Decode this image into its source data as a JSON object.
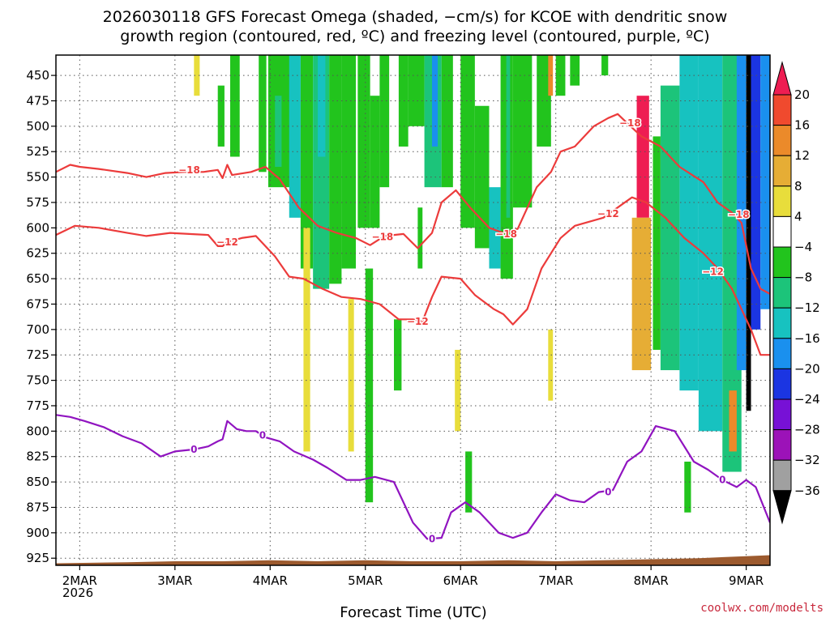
{
  "title_line1": "2026030118 GFS Forecast Omega (shaded, −cm/s) for KCOE with dendritic snow",
  "title_line2": "growth region (contoured, red, ºC) and freezing level (contoured, purple, ºC)",
  "credit": "coolwx.com/modelts",
  "chart_data": {
    "type": "heatmap",
    "xlabel": "Forecast Time (UTC)",
    "ylabel": "",
    "x_ticks": [
      "2MAR",
      "3MAR",
      "4MAR",
      "5MAR",
      "6MAR",
      "7MAR",
      "8MAR",
      "9MAR"
    ],
    "x_tick_year": "2026",
    "y_ticks": [
      450,
      475,
      500,
      525,
      550,
      575,
      600,
      625,
      650,
      675,
      700,
      725,
      750,
      775,
      800,
      825,
      850,
      875,
      900,
      925
    ],
    "x_range_days": [
      1.75,
      9.25
    ],
    "y_range_hpa": [
      430,
      932
    ],
    "y_reversed": true,
    "grid": true,
    "colorbar": {
      "labels": [
        "20",
        "16",
        "12",
        "8",
        "4",
        "−4",
        "−8",
        "−12",
        "−16",
        "−20",
        "−24",
        "−28",
        "−32",
        "−36"
      ],
      "colors": [
        "#ee1d52",
        "#f04a2e",
        "#eb8a2a",
        "#e6ad35",
        "#e8dd3b",
        "#ffffff",
        "#22c41d",
        "#1cc47a",
        "#17c2c0",
        "#1a90ee",
        "#1b35e2",
        "#7711d6",
        "#9c12b8",
        "#a0a0a0",
        "#000000"
      ]
    },
    "series": [
      {
        "name": "dgz_-18",
        "label": "−18",
        "color": "#ec3b3b",
        "x": [
          1.75,
          1.9,
          2.0,
          2.2,
          2.5,
          2.7,
          2.9,
          3.1,
          3.3,
          3.45,
          3.5,
          3.55,
          3.6,
          3.8,
          3.95,
          4.1,
          4.3,
          4.5,
          4.7,
          4.9,
          5.05,
          5.2,
          5.4,
          5.55,
          5.7,
          5.8,
          5.95,
          6.1,
          6.3,
          6.45,
          6.6,
          6.8,
          6.95,
          7.05,
          7.2,
          7.4,
          7.55,
          7.65,
          7.75,
          7.9,
          8.1,
          8.3,
          8.55,
          8.7,
          8.85,
          8.95,
          9.05,
          9.15,
          9.25
        ],
        "y": [
          545,
          538,
          540,
          542,
          546,
          550,
          546,
          545,
          545,
          543,
          551,
          538,
          548,
          545,
          540,
          552,
          580,
          598,
          605,
          610,
          617,
          608,
          606,
          620,
          605,
          575,
          563,
          580,
          600,
          605,
          601,
          560,
          545,
          525,
          520,
          500,
          492,
          488,
          497,
          510,
          520,
          540,
          555,
          575,
          585,
          595,
          640,
          660,
          665
        ]
      },
      {
        "name": "dgz_-12",
        "label": "−12",
        "color": "#ec3b3b",
        "x": [
          1.75,
          1.95,
          2.2,
          2.5,
          2.7,
          2.95,
          3.15,
          3.35,
          3.45,
          3.5,
          3.55,
          3.7,
          3.85,
          3.95,
          4.05,
          4.2,
          4.35,
          4.55,
          4.75,
          4.95,
          5.15,
          5.35,
          5.5,
          5.6,
          5.7,
          5.8,
          6.0,
          6.15,
          6.35,
          6.45,
          6.55,
          6.7,
          6.85,
          6.95,
          7.05,
          7.2,
          7.35,
          7.5,
          7.65,
          7.8,
          7.95,
          8.15,
          8.35,
          8.55,
          8.7,
          8.85,
          8.95,
          9.05,
          9.15,
          9.25
        ],
        "y": [
          607,
          598,
          600,
          605,
          608,
          605,
          606,
          607,
          618,
          618,
          614,
          610,
          608,
          618,
          628,
          648,
          650,
          660,
          668,
          670,
          675,
          690,
          690,
          692,
          668,
          648,
          650,
          666,
          680,
          685,
          695,
          680,
          640,
          625,
          610,
          598,
          594,
          590,
          580,
          570,
          575,
          590,
          610,
          625,
          640,
          660,
          680,
          700,
          725,
          725
        ]
      },
      {
        "name": "freezing_level_0",
        "label": "0",
        "color": "#9014c0",
        "x": [
          1.75,
          1.9,
          2.05,
          2.25,
          2.45,
          2.65,
          2.85,
          3.0,
          3.2,
          3.35,
          3.45,
          3.5,
          3.55,
          3.65,
          3.75,
          3.85,
          3.95,
          4.1,
          4.25,
          4.45,
          4.6,
          4.8,
          4.95,
          5.1,
          5.3,
          5.5,
          5.65,
          5.8,
          5.9,
          6.05,
          6.2,
          6.4,
          6.55,
          6.7,
          6.85,
          7.0,
          7.15,
          7.3,
          7.45,
          7.6,
          7.75,
          7.9,
          8.05,
          8.25,
          8.45,
          8.6,
          8.75,
          8.9,
          9.0,
          9.1,
          9.25
        ],
        "y": [
          784,
          786,
          790,
          796,
          805,
          812,
          825,
          820,
          818,
          815,
          810,
          808,
          790,
          798,
          800,
          800,
          806,
          810,
          820,
          828,
          836,
          848,
          848,
          845,
          850,
          890,
          906,
          905,
          880,
          870,
          880,
          900,
          905,
          900,
          880,
          862,
          868,
          870,
          860,
          858,
          830,
          820,
          795,
          800,
          830,
          838,
          848,
          855,
          848,
          855,
          890
        ]
      }
    ],
    "contour_labels": [
      {
        "text": "−18",
        "x": 3.15,
        "y": 543,
        "series": "dgz_-18"
      },
      {
        "text": "−18",
        "x": 5.18,
        "y": 609,
        "series": "dgz_-18"
      },
      {
        "text": "−18",
        "x": 6.48,
        "y": 606,
        "series": "dgz_-18"
      },
      {
        "text": "−18",
        "x": 7.78,
        "y": 497,
        "series": "dgz_-18"
      },
      {
        "text": "−18",
        "x": 8.92,
        "y": 587,
        "series": "dgz_-18"
      },
      {
        "text": "−12",
        "x": 3.55,
        "y": 614,
        "series": "dgz_-12"
      },
      {
        "text": "−12",
        "x": 5.55,
        "y": 692,
        "series": "dgz_-12"
      },
      {
        "text": "−12",
        "x": 7.55,
        "y": 586,
        "series": "dgz_-12"
      },
      {
        "text": "−12",
        "x": 8.65,
        "y": 643,
        "series": "dgz_-12"
      },
      {
        "text": "0",
        "x": 3.2,
        "y": 818,
        "series": "freezing_level_0"
      },
      {
        "text": "0",
        "x": 3.92,
        "y": 804,
        "series": "freezing_level_0"
      },
      {
        "text": "0",
        "x": 5.7,
        "y": 906,
        "series": "freezing_level_0"
      },
      {
        "text": "0",
        "x": 7.55,
        "y": 860,
        "series": "freezing_level_0"
      },
      {
        "text": "0",
        "x": 8.75,
        "y": 848,
        "series": "freezing_level_0"
      }
    ],
    "omega_regions": [
      {
        "x0": 3.2,
        "x1": 3.26,
        "y0": 430,
        "y1": 470,
        "color": "#e8dd3b"
      },
      {
        "x0": 3.58,
        "x1": 3.68,
        "y0": 430,
        "y1": 530,
        "color": "#22c41d"
      },
      {
        "x0": 3.45,
        "x1": 3.52,
        "y0": 460,
        "y1": 520,
        "color": "#22c41d"
      },
      {
        "x0": 3.88,
        "x1": 3.96,
        "y0": 430,
        "y1": 545,
        "color": "#22c41d"
      },
      {
        "x0": 3.98,
        "x1": 4.3,
        "y0": 430,
        "y1": 560,
        "color": "#22c41d"
      },
      {
        "x0": 4.05,
        "x1": 4.12,
        "y0": 470,
        "y1": 540,
        "color": "#1cc47a"
      },
      {
        "x0": 4.2,
        "x1": 4.32,
        "y0": 430,
        "y1": 590,
        "color": "#17c2c0"
      },
      {
        "x0": 4.32,
        "x1": 4.45,
        "y0": 430,
        "y1": 640,
        "color": "#22c41d"
      },
      {
        "x0": 4.35,
        "x1": 4.42,
        "y0": 600,
        "y1": 820,
        "color": "#e8dd3b"
      },
      {
        "x0": 4.45,
        "x1": 4.62,
        "y0": 430,
        "y1": 660,
        "color": "#1cc47a"
      },
      {
        "x0": 4.5,
        "x1": 4.58,
        "y0": 430,
        "y1": 530,
        "color": "#17c2c0"
      },
      {
        "x0": 4.62,
        "x1": 4.75,
        "y0": 430,
        "y1": 655,
        "color": "#22c41d"
      },
      {
        "x0": 4.75,
        "x1": 4.9,
        "y0": 430,
        "y1": 640,
        "color": "#22c41d"
      },
      {
        "x0": 4.82,
        "x1": 4.88,
        "y0": 670,
        "y1": 820,
        "color": "#e8dd3b"
      },
      {
        "x0": 4.92,
        "x1": 5.05,
        "y0": 430,
        "y1": 600,
        "color": "#22c41d"
      },
      {
        "x0": 5.05,
        "x1": 5.15,
        "y0": 470,
        "y1": 600,
        "color": "#22c41d"
      },
      {
        "x0": 5.0,
        "x1": 5.08,
        "y0": 640,
        "y1": 870,
        "color": "#22c41d"
      },
      {
        "x0": 5.15,
        "x1": 5.25,
        "y0": 430,
        "y1": 560,
        "color": "#22c41d"
      },
      {
        "x0": 5.3,
        "x1": 5.38,
        "y0": 690,
        "y1": 760,
        "color": "#22c41d"
      },
      {
        "x0": 5.35,
        "x1": 5.45,
        "y0": 430,
        "y1": 520,
        "color": "#22c41d"
      },
      {
        "x0": 5.45,
        "x1": 5.62,
        "y0": 430,
        "y1": 500,
        "color": "#22c41d"
      },
      {
        "x0": 5.55,
        "x1": 5.6,
        "y0": 580,
        "y1": 640,
        "color": "#22c41d"
      },
      {
        "x0": 5.62,
        "x1": 5.8,
        "y0": 430,
        "y1": 560,
        "color": "#1cc47a"
      },
      {
        "x0": 5.7,
        "x1": 5.76,
        "y0": 430,
        "y1": 520,
        "color": "#1a90ee"
      },
      {
        "x0": 5.8,
        "x1": 5.92,
        "y0": 430,
        "y1": 560,
        "color": "#22c41d"
      },
      {
        "x0": 5.94,
        "x1": 6.0,
        "y0": 720,
        "y1": 800,
        "color": "#e8dd3b"
      },
      {
        "x0": 6.0,
        "x1": 6.15,
        "y0": 430,
        "y1": 600,
        "color": "#22c41d"
      },
      {
        "x0": 6.05,
        "x1": 6.12,
        "y0": 820,
        "y1": 880,
        "color": "#22c41d"
      },
      {
        "x0": 6.15,
        "x1": 6.3,
        "y0": 480,
        "y1": 620,
        "color": "#22c41d"
      },
      {
        "x0": 6.3,
        "x1": 6.42,
        "y0": 560,
        "y1": 640,
        "color": "#17c2c0"
      },
      {
        "x0": 6.42,
        "x1": 6.55,
        "y0": 430,
        "y1": 650,
        "color": "#22c41d"
      },
      {
        "x0": 6.48,
        "x1": 6.52,
        "y0": 430,
        "y1": 590,
        "color": "#1cc47a"
      },
      {
        "x0": 6.55,
        "x1": 6.75,
        "y0": 430,
        "y1": 580,
        "color": "#22c41d"
      },
      {
        "x0": 6.8,
        "x1": 6.95,
        "y0": 430,
        "y1": 520,
        "color": "#22c41d"
      },
      {
        "x0": 6.92,
        "x1": 6.97,
        "y0": 430,
        "y1": 470,
        "color": "#eb8a2a"
      },
      {
        "x0": 6.92,
        "x1": 6.97,
        "y0": 700,
        "y1": 770,
        "color": "#e8dd3b"
      },
      {
        "x0": 7.0,
        "x1": 7.1,
        "y0": 430,
        "y1": 470,
        "color": "#22c41d"
      },
      {
        "x0": 7.15,
        "x1": 7.25,
        "y0": 430,
        "y1": 460,
        "color": "#22c41d"
      },
      {
        "x0": 7.48,
        "x1": 7.55,
        "y0": 430,
        "y1": 450,
        "color": "#22c41d"
      },
      {
        "x0": 7.85,
        "x1": 7.98,
        "y0": 470,
        "y1": 590,
        "color": "#ee1d52"
      },
      {
        "x0": 7.8,
        "x1": 8.0,
        "y0": 590,
        "y1": 740,
        "color": "#e6ad35"
      },
      {
        "x0": 8.02,
        "x1": 8.1,
        "y0": 510,
        "y1": 720,
        "color": "#22c41d"
      },
      {
        "x0": 8.1,
        "x1": 8.3,
        "y0": 460,
        "y1": 740,
        "color": "#1cc47a"
      },
      {
        "x0": 8.3,
        "x1": 8.5,
        "y0": 430,
        "y1": 760,
        "color": "#17c2c0"
      },
      {
        "x0": 8.5,
        "x1": 8.75,
        "y0": 430,
        "y1": 800,
        "color": "#17c2c0"
      },
      {
        "x0": 8.75,
        "x1": 8.95,
        "y0": 430,
        "y1": 840,
        "color": "#1cc47a"
      },
      {
        "x0": 8.9,
        "x1": 9.0,
        "y0": 430,
        "y1": 740,
        "color": "#1a90ee"
      },
      {
        "x0": 9.0,
        "x1": 9.05,
        "y0": 430,
        "y1": 780,
        "color": "#000000"
      },
      {
        "x0": 9.05,
        "x1": 9.15,
        "y0": 430,
        "y1": 700,
        "color": "#1b35e2"
      },
      {
        "x0": 9.15,
        "x1": 9.25,
        "y0": 430,
        "y1": 680,
        "color": "#1a90ee"
      },
      {
        "x0": 8.82,
        "x1": 8.9,
        "y0": 760,
        "y1": 820,
        "color": "#eb8a2a"
      },
      {
        "x0": 8.35,
        "x1": 8.42,
        "y0": 830,
        "y1": 880,
        "color": "#22c41d"
      }
    ],
    "terrain_color": "#9c5a2e"
  }
}
